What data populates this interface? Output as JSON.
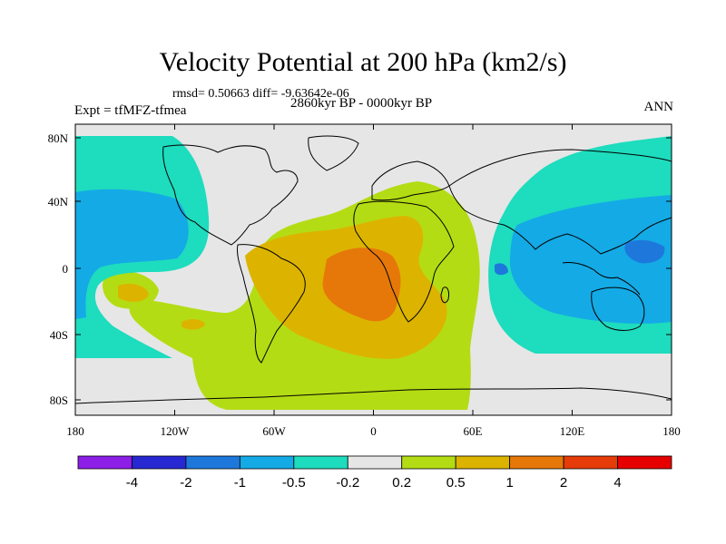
{
  "title": "Velocity Potential at 200 hPa (km2/s)",
  "stats": "rmsd= 0.50663  diff= -9.63642e-06",
  "period": "2860kyr BP - 0000kyr BP",
  "experiment": "Expt = tfMFZ-tfmea",
  "season": "ANN",
  "x_ticks": [
    "180",
    "120W",
    "60W",
    "0",
    "60E",
    "120E",
    "180"
  ],
  "y_ticks": [
    "80N",
    "40N",
    "0",
    "40S",
    "80S"
  ],
  "colorbar": {
    "labels": [
      "-4",
      "-2",
      "-1",
      "-0.5",
      "-0.2",
      "0.2",
      "0.5",
      "1",
      "2",
      "4"
    ],
    "colors": [
      "#8c1ee6",
      "#2828d2",
      "#1e78dc",
      "#14aae6",
      "#1edcbe",
      "#e6e6e6",
      "#b4dc14",
      "#dcb400",
      "#e6780a",
      "#e63c0a",
      "#e60000"
    ]
  }
}
